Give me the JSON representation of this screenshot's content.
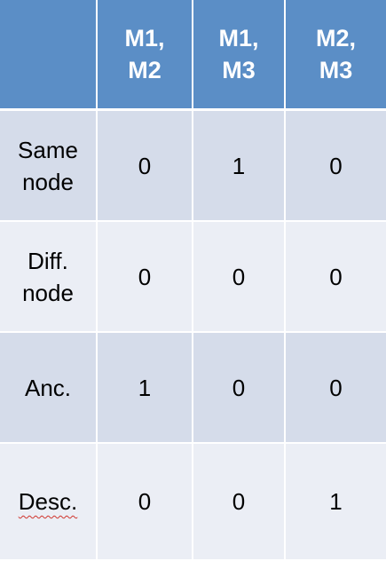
{
  "table": {
    "header": [
      "",
      "M1,\nM2",
      "M1,\nM3",
      "M2,\nM3"
    ],
    "rows": [
      {
        "label": "Same\nnode",
        "values": [
          "0",
          "1",
          "0"
        ]
      },
      {
        "label": "Diff.\nnode",
        "values": [
          "0",
          "0",
          "0"
        ]
      },
      {
        "label": "Anc.",
        "values": [
          "1",
          "0",
          "0"
        ]
      },
      {
        "label": "Desc.",
        "values": [
          "0",
          "0",
          "1"
        ]
      }
    ]
  },
  "colors": {
    "header_bg": "#5b8ec6",
    "row_dark": "#d5dcea",
    "row_light": "#ebeef5",
    "spellcheck_underline": "#d0342c"
  }
}
